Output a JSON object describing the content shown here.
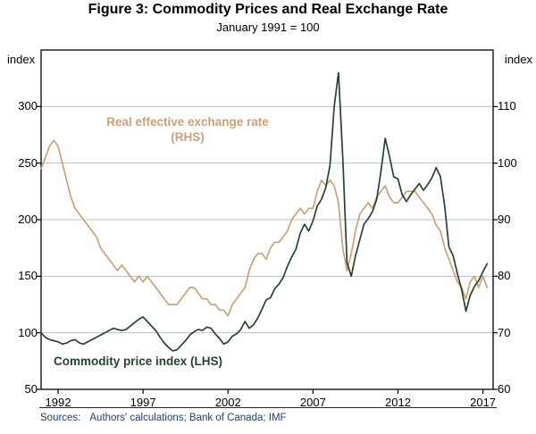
{
  "figure": {
    "title": "Figure 3: Commodity Prices and Real Exchange Rate",
    "subtitle": "January 1991 = 100",
    "source_label": "Sources:",
    "source_text": "Authors' calculations; Bank of Canada; IMF"
  },
  "annotations": {
    "reer_line1": "Real effective exchange rate",
    "reer_line2": "(RHS)",
    "commodity": "Commodity price index (LHS)"
  },
  "colors": {
    "reer": "#c9a276",
    "commodity": "#24452c",
    "grid": "#bfbfbf",
    "axis": "#000000",
    "source_text": "#1f3f6e"
  },
  "chart_data": {
    "type": "line",
    "title": "Figure 3: Commodity Prices and Real Exchange Rate",
    "subtitle": "January 1991 = 100",
    "x_range": [
      1991,
      2017.6
    ],
    "x_ticks": [
      1992,
      1997,
      2002,
      2007,
      2012,
      2017
    ],
    "left_axis": {
      "label": "index",
      "range": [
        50,
        350
      ],
      "ticks": [
        50,
        100,
        150,
        200,
        250,
        300
      ]
    },
    "right_axis": {
      "label": "index",
      "range": [
        60,
        120
      ],
      "ticks": [
        60,
        70,
        80,
        90,
        100,
        110
      ]
    },
    "grid": true,
    "series": [
      {
        "name": "Real effective exchange rate (RHS)",
        "axis": "right",
        "color": "#c9a276",
        "x": {
          "start": 1991.0,
          "step": 0.25
        },
        "values": [
          99,
          101,
          103,
          104,
          103,
          100,
          97,
          94,
          92,
          91,
          90,
          89,
          88,
          87,
          85,
          84,
          83,
          82,
          81,
          82,
          81,
          80,
          79,
          80,
          79,
          80,
          79,
          78,
          77,
          76,
          75,
          75,
          75,
          76,
          77,
          78,
          78,
          77,
          76,
          76,
          75,
          75,
          74,
          74,
          73,
          75,
          76,
          77,
          78,
          81,
          83,
          84,
          84,
          83,
          85,
          86,
          86,
          87,
          88,
          90,
          91,
          92,
          91,
          92,
          92,
          95,
          97,
          96,
          97,
          96,
          93,
          85,
          81,
          84,
          88,
          91,
          92,
          93,
          92,
          94,
          95,
          96,
          94,
          93,
          93,
          94,
          95,
          95,
          95,
          94,
          93,
          92,
          91,
          89,
          88,
          85,
          83,
          81,
          79,
          78,
          76,
          79,
          80,
          78,
          80,
          78
        ]
      },
      {
        "name": "Commodity price index (LHS)",
        "axis": "left",
        "color": "#24452c",
        "x": {
          "start": 1991.0,
          "step": 0.25
        },
        "values": [
          100,
          96,
          94,
          93,
          92,
          90,
          91,
          93,
          94,
          91,
          90,
          92,
          94,
          96,
          98,
          100,
          102,
          104,
          103,
          102,
          103,
          106,
          109,
          112,
          114,
          110,
          106,
          102,
          96,
          91,
          87,
          84,
          85,
          89,
          93,
          98,
          101,
          103,
          102,
          105,
          104,
          99,
          95,
          90,
          92,
          97,
          99,
          103,
          110,
          104,
          107,
          113,
          121,
          129,
          131,
          139,
          143,
          149,
          159,
          167,
          174,
          188,
          196,
          190,
          199,
          212,
          218,
          228,
          248,
          300,
          330,
          255,
          162,
          150,
          168,
          182,
          196,
          201,
          207,
          218,
          243,
          272,
          256,
          238,
          236,
          222,
          216,
          222,
          227,
          232,
          226,
          231,
          237,
          246,
          238,
          212,
          176,
          168,
          152,
          138,
          119,
          133,
          141,
          146,
          154,
          161
        ]
      }
    ]
  }
}
